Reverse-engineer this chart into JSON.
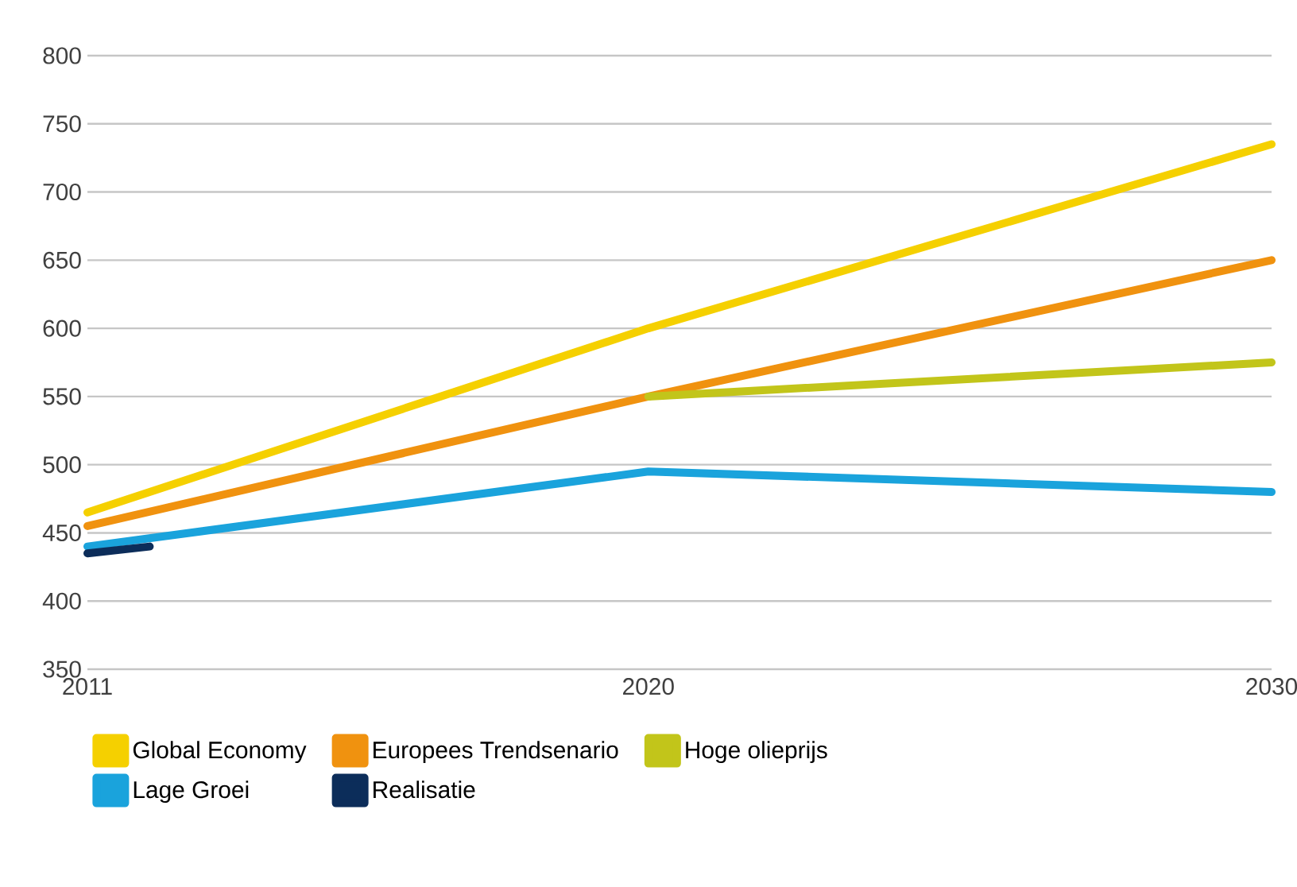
{
  "chart_data": {
    "type": "line",
    "xlim": [
      2011,
      2030
    ],
    "xticks": [
      2011,
      2020,
      2030
    ],
    "ylim": [
      350,
      800
    ],
    "yticks": [
      350,
      400,
      450,
      500,
      550,
      600,
      650,
      700,
      750,
      800
    ],
    "grid": "y",
    "legend": "bottom",
    "marker": "none",
    "line_style": "solid",
    "series": [
      {
        "name": "Global Economy",
        "color": "#f5d000",
        "x": [
          2011,
          2020,
          2030
        ],
        "values": [
          465,
          600,
          735
        ]
      },
      {
        "name": "Europees Trendsenario",
        "color": "#f0920f",
        "x": [
          2011,
          2020,
          2030
        ],
        "values": [
          455,
          550,
          650
        ]
      },
      {
        "name": "Hoge olieprijs",
        "color": "#c2c51a",
        "x": [
          2020,
          2030
        ],
        "values": [
          550,
          575
        ]
      },
      {
        "name": "Lage Groei",
        "color": "#1aa3dc",
        "x": [
          2011,
          2020,
          2030
        ],
        "values": [
          440,
          495,
          480
        ]
      },
      {
        "name": "Realisatie",
        "color": "#0c2d5a",
        "x": [
          2011,
          2012
        ],
        "values": [
          435,
          440
        ]
      }
    ]
  }
}
